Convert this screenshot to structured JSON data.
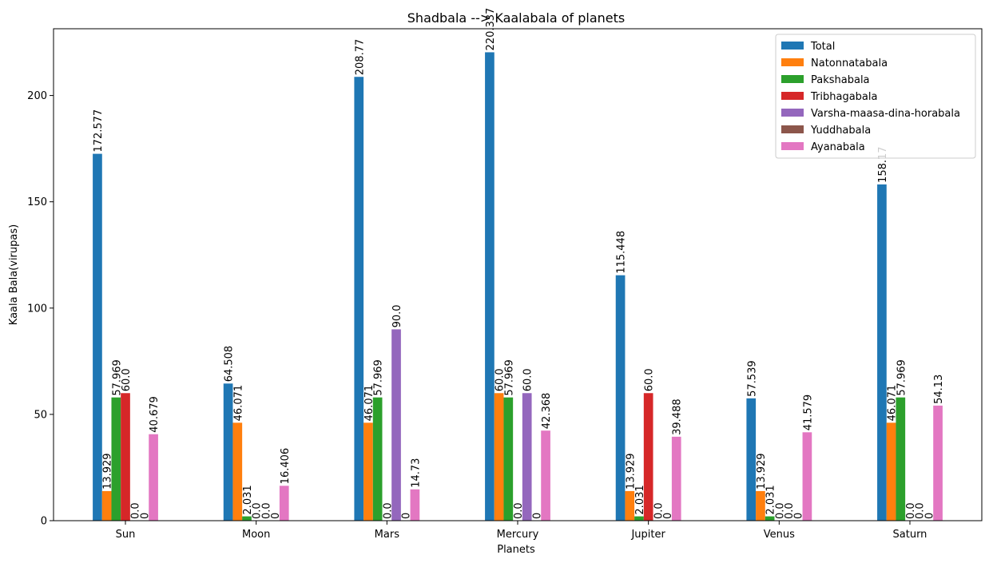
{
  "chart_data": {
    "type": "bar",
    "title": "Shadbala --> Kaalabala of planets",
    "xlabel": "Planets",
    "ylabel": "Kaala Bala(virupas)",
    "ylim": [
      0,
      231.4
    ],
    "yticks": [
      0,
      50,
      100,
      150,
      200
    ],
    "legend_position": "top-right",
    "grid": false,
    "categories": [
      "Sun",
      "Moon",
      "Mars",
      "Mercury",
      "Jupiter",
      "Venus",
      "Saturn"
    ],
    "series": [
      {
        "name": "Total",
        "color": "#1f77b4",
        "values": [
          172.577,
          64.508,
          208.77,
          220.337,
          115.448,
          57.539,
          158.17
        ],
        "labels": [
          "172.577",
          "64.508",
          "208.77",
          "220.337",
          "115.448",
          "57.539",
          "158.17"
        ]
      },
      {
        "name": "Natonnatabala",
        "color": "#ff7f0e",
        "values": [
          13.929,
          46.071,
          46.071,
          60.0,
          13.929,
          13.929,
          46.071
        ],
        "labels": [
          "13.929",
          "46.071",
          "46.071",
          "60.0",
          "13.929",
          "13.929",
          "46.071"
        ]
      },
      {
        "name": "Pakshabala",
        "color": "#2ca02c",
        "values": [
          57.969,
          2.031,
          57.969,
          57.969,
          2.031,
          2.031,
          57.969
        ],
        "labels": [
          "57.969",
          "2.031",
          "57.969",
          "57.969",
          "2.031",
          "2.031",
          "57.969"
        ]
      },
      {
        "name": "Tribhagabala",
        "color": "#d62728",
        "values": [
          60.0,
          0.0,
          0.0,
          0.0,
          60.0,
          0.0,
          0.0
        ],
        "labels": [
          "60.0",
          "0.0",
          "0.0",
          "0.0",
          "60.0",
          "0.0",
          "0.0"
        ]
      },
      {
        "name": "Varsha-maasa-dina-horabala",
        "color": "#9467bd",
        "values": [
          0.0,
          0.0,
          90.0,
          60.0,
          0.0,
          0.0,
          0.0
        ],
        "labels": [
          "0.0",
          "0.0",
          "90.0",
          "60.0",
          "0.0",
          "0.0",
          "0.0"
        ]
      },
      {
        "name": "Yuddhabala",
        "color": "#8c564b",
        "values": [
          0,
          0,
          0,
          0,
          0,
          0,
          0
        ],
        "labels": [
          "0",
          "0",
          "0",
          "0",
          "0",
          "0",
          "0"
        ]
      },
      {
        "name": "Ayanabala",
        "color": "#e377c2",
        "values": [
          40.679,
          16.406,
          14.73,
          42.368,
          39.488,
          41.579,
          54.13
        ],
        "labels": [
          "40.679",
          "16.406",
          "14.73",
          "42.368",
          "39.488",
          "41.579",
          "54.13"
        ]
      }
    ]
  }
}
